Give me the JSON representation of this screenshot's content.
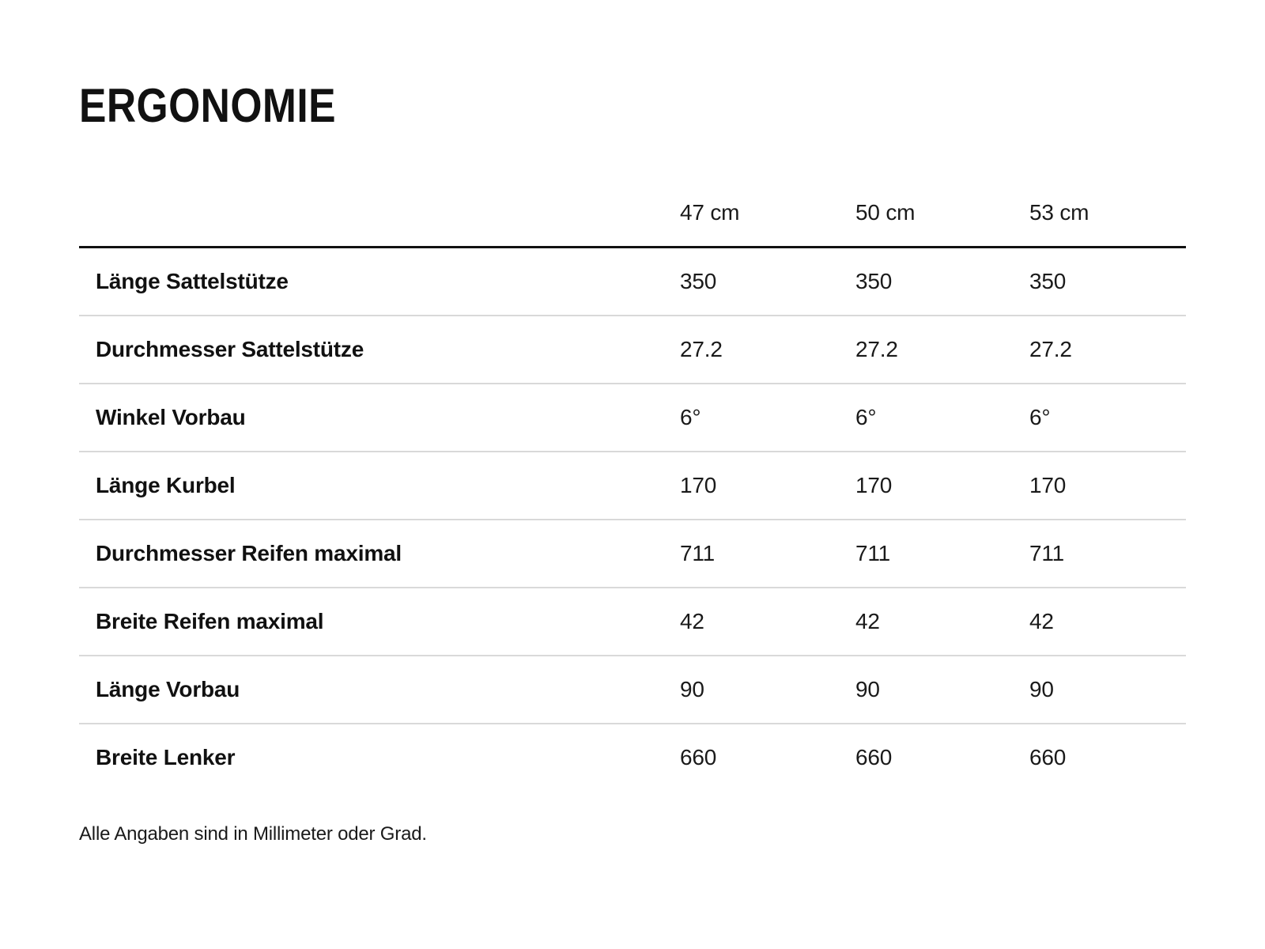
{
  "title": "ERGONOMIE",
  "table": {
    "columns": [
      "47 cm",
      "50 cm",
      "53 cm"
    ],
    "rows": [
      {
        "label": "Länge Sattelstütze",
        "values": [
          "350",
          "350",
          "350"
        ]
      },
      {
        "label": "Durchmesser Sattelstütze",
        "values": [
          "27.2",
          "27.2",
          "27.2"
        ]
      },
      {
        "label": "Winkel Vorbau",
        "values": [
          "6°",
          "6°",
          "6°"
        ]
      },
      {
        "label": "Länge Kurbel",
        "values": [
          "170",
          "170",
          "170"
        ]
      },
      {
        "label": "Durchmesser Reifen maximal",
        "values": [
          "711",
          "711",
          "711"
        ]
      },
      {
        "label": "Breite Reifen maximal",
        "values": [
          "42",
          "42",
          "42"
        ]
      },
      {
        "label": "Länge Vorbau",
        "values": [
          "90",
          "90",
          "90"
        ]
      },
      {
        "label": "Breite Lenker",
        "values": [
          "660",
          "660",
          "660"
        ]
      }
    ]
  },
  "footnote": "Alle Angaben sind in Millimeter oder Grad.",
  "colors": {
    "background": "#ffffff",
    "text": "#1a1a1a",
    "header_rule": "#111111",
    "row_divider": "#d9d9d9"
  }
}
